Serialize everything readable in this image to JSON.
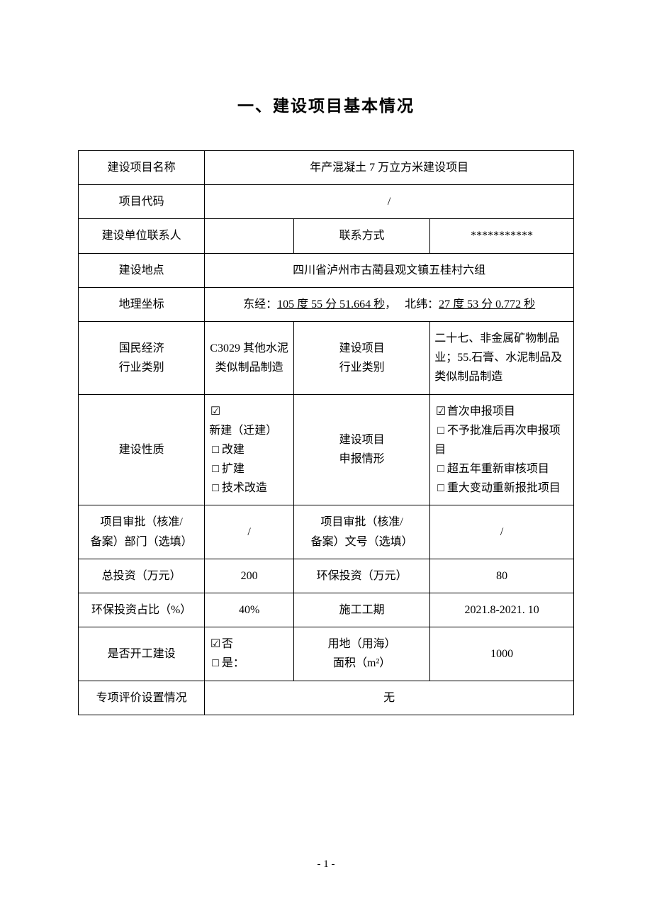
{
  "section_title": "一、建设项目基本情况",
  "labels": {
    "project_name": "建设项目名称",
    "project_code": "项目代码",
    "contact_person": "建设单位联系人",
    "contact_method": "联系方式",
    "location": "建设地点",
    "geo_coord": "地理坐标",
    "econ_category": "国民经济\n行业类别",
    "build_category": "建设项目\n行业类别",
    "build_nature": "建设性质",
    "filing_situation": "建设项目\n申报情形",
    "approval_dept": "项目审批（核准/\n备案）部门（选填）",
    "approval_no": "项目审批（核准/\n备案）文号（选填）",
    "total_invest": "总投资（万元）",
    "env_invest": "环保投资（万元）",
    "env_ratio": "环保投资占比（%）",
    "construction_period": "施工工期",
    "started": "是否开工建设",
    "land_area": "用地（用海）\n面积（m²）",
    "special_eval": "专项评价设置情况"
  },
  "values": {
    "project_name": "年产混凝土 7 万立方米建设项目",
    "project_code": "/",
    "contact_person": "",
    "contact_method_value": "***********",
    "location": "四川省泸州市古蔺县观文镇五桂村六组",
    "geo_longitude_label": "东经：",
    "geo_longitude": "105 度 55 分 51.664 秒",
    "geo_sep": "，",
    "geo_latitude_label": "北纬：",
    "geo_latitude": "27 度 53 分 0.772 秒",
    "econ_category": "C3029 其他水泥类似制品制造",
    "build_category": "二十七、非金属矿物制品业；55.石膏、水泥制品及类似制品制造",
    "approval_dept": "/",
    "approval_no": "/",
    "total_invest": "200",
    "env_invest": "80",
    "env_ratio": "40%",
    "construction_period": "2021.8-2021. 10",
    "land_area": "1000",
    "special_eval": "无"
  },
  "build_nature_opts": [
    {
      "checked": true,
      "label": "新建（迁建）"
    },
    {
      "checked": false,
      "label": "改建"
    },
    {
      "checked": false,
      "label": "扩建"
    },
    {
      "checked": false,
      "label": "技术改造"
    }
  ],
  "filing_opts": [
    {
      "checked": true,
      "label": "首次申报项目"
    },
    {
      "checked": false,
      "label": "不予批准后再次申报项目"
    },
    {
      "checked": false,
      "label": "超五年重新审核项目"
    },
    {
      "checked": false,
      "label": "重大变动重新报批项目"
    }
  ],
  "started_opts": [
    {
      "checked": true,
      "label": "否"
    },
    {
      "checked": false,
      "label": "是："
    }
  ],
  "glyphs": {
    "checked": "☑",
    "unchecked": "□"
  },
  "page_number": "- 1 -"
}
